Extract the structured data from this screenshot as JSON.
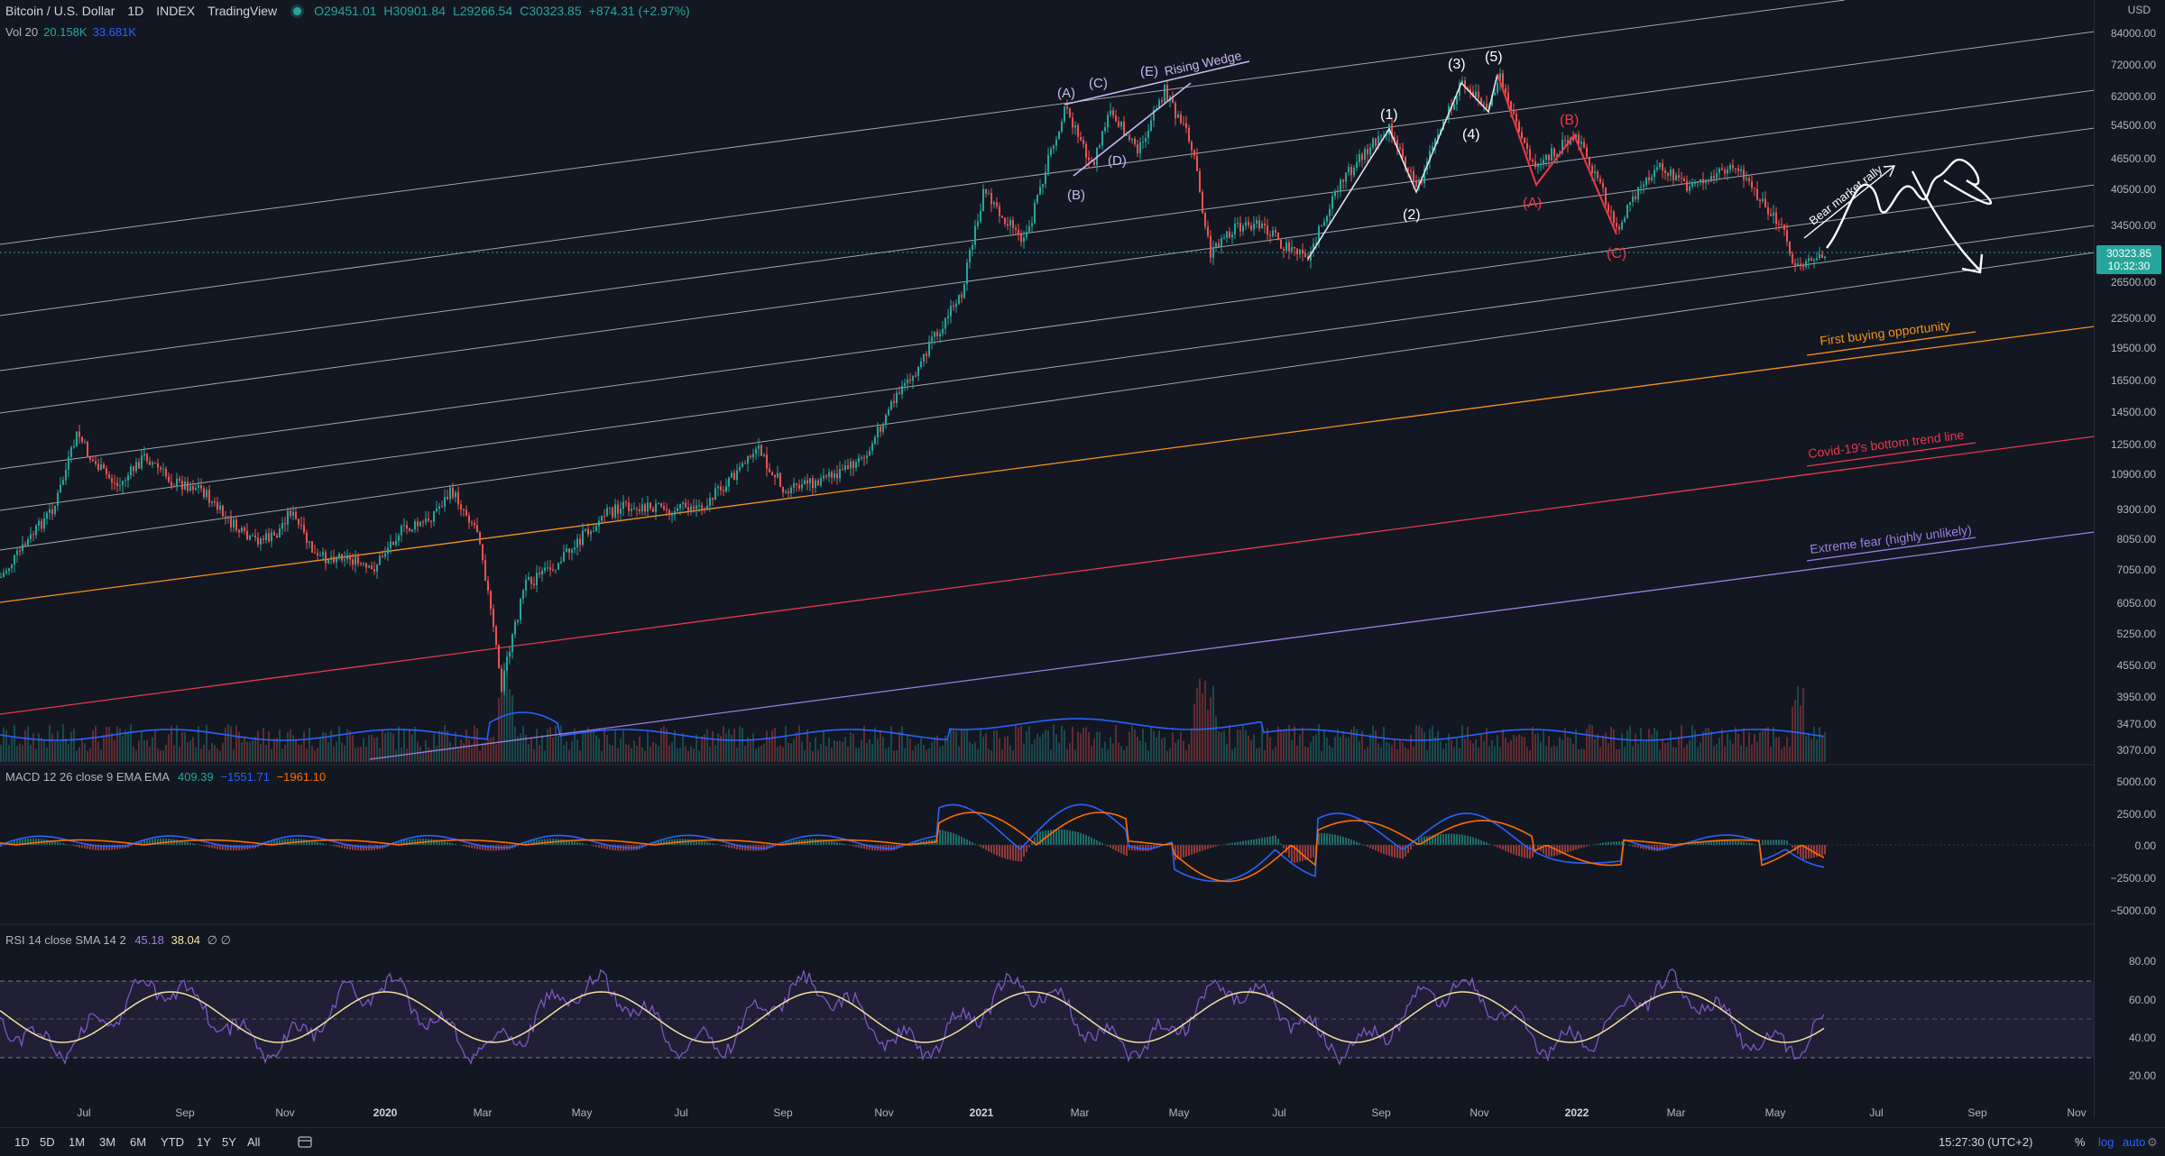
{
  "header": {
    "symbol": "Bitcoin / U.S. Dollar",
    "interval": "1D",
    "exchange": "INDEX",
    "source": "TradingView",
    "open": "O29451.01",
    "high": "H30901.84",
    "low": "L29266.54",
    "close": "C30323.85",
    "change": "+874.31 (+2.97%)",
    "status_color": "#26a69a"
  },
  "volume": {
    "label": "Vol 20",
    "value": "20.158K",
    "ma": "33.681K"
  },
  "macd": {
    "label": "MACD 12 26 close 9 EMA EMA",
    "v1": "409.39",
    "v2": "−1551.71",
    "v3": "−1961.10"
  },
  "rsi": {
    "label": "RSI 14 close SMA 14 2",
    "v1": "45.18",
    "v2": "38.04",
    "flags": "∅ ∅"
  },
  "price_axis": {
    "currency": "USD",
    "ticks": [
      "84000.00",
      "72000.00",
      "62000.00",
      "54500.00",
      "46500.00",
      "40500.00",
      "34500.00",
      "26500.00",
      "22500.00",
      "19500.00",
      "16500.00",
      "14500.00",
      "12500.00",
      "10900.00",
      "9300.00",
      "8050.00",
      "7050.00",
      "6050.00",
      "5250.00",
      "4550.00",
      "3950.00",
      "3470.00",
      "3070.00"
    ],
    "last_price": "30323.85",
    "countdown": "10:32:30"
  },
  "macd_axis": [
    "5000.00",
    "2500.00",
    "0.00",
    "−2500.00",
    "−5000.00"
  ],
  "rsi_axis": [
    "80.00",
    "60.00",
    "40.00",
    "20.00"
  ],
  "time_axis": [
    "Jul",
    "Sep",
    "Nov",
    "2020",
    "Mar",
    "May",
    "Jul",
    "Sep",
    "Nov",
    "2021",
    "Mar",
    "May",
    "Jul",
    "Sep",
    "Nov",
    "2022",
    "Mar",
    "May",
    "Jul",
    "Sep",
    "Nov"
  ],
  "annotations": {
    "rising_wedge": "Rising Wedge",
    "wedge_labels": [
      "(A)",
      "(B)",
      "(C)",
      "(D)",
      "(E)"
    ],
    "impulse_labels": [
      "(1)",
      "(2)",
      "(3)",
      "(4)",
      "(5)"
    ],
    "correction_labels": [
      "(A)",
      "(B)",
      "(C)"
    ],
    "bear_rally": "Bear market rally",
    "first_buying": "First buying opportunity",
    "covid_line": "Covid-19's bottom trend line",
    "extreme_fear": "Extreme fear (highly unlikely)"
  },
  "colors": {
    "up": "#26a69a",
    "down": "#ef5350",
    "orange": "#f7931a",
    "red_line": "#e53950",
    "purple": "#9c7fe0",
    "wedge": "#c9b8f0",
    "correction": "#f23645"
  },
  "toolbar": {
    "timeframes": [
      "1D",
      "5D",
      "1M",
      "3M",
      "6M",
      "YTD",
      "1Y",
      "5Y",
      "All"
    ],
    "clock": "15:27:30 (UTC+2)",
    "percent": "%",
    "log": "log",
    "auto": "auto"
  }
}
